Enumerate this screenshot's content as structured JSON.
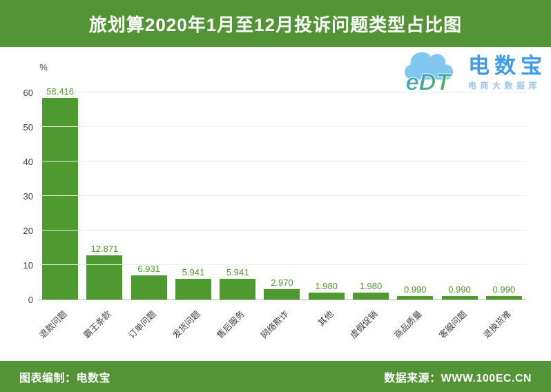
{
  "header": {
    "title": "旅划算2020年1月至12月投诉问题类型占比图",
    "background_color": "#529436"
  },
  "logo": {
    "cloud_text": "eDT",
    "brand": "电数宝",
    "sub": "电商大数据库",
    "brand_color": "#3f9be4",
    "sub_color": "#9cc6ec",
    "cloud_color": "#82c7f0"
  },
  "chart_data": {
    "type": "bar",
    "title": "旅划算2020年1月至12月投诉问题类型占比图",
    "unit_label": "%",
    "categories": [
      "退款问题",
      "霸王条款",
      "订单问题",
      "发货问题",
      "售后服务",
      "网络欺诈",
      "其他",
      "虚假促销",
      "商品质量",
      "客服问题",
      "退换货难"
    ],
    "values": [
      58.416,
      12.871,
      6.931,
      5.941,
      5.941,
      2.97,
      1.98,
      1.98,
      0.99,
      0.99,
      0.99
    ],
    "value_labels": [
      "58.416",
      "12.871",
      "6.931",
      "5.941",
      "5.941",
      "2.970",
      "1.980",
      "1.980",
      "0.990",
      "0.990",
      "0.990"
    ],
    "xlabel": "",
    "ylabel": "%",
    "ylim": [
      0,
      60
    ],
    "yticks": [
      0,
      10,
      20,
      30,
      40,
      50,
      60
    ],
    "grid": true,
    "legend": "none",
    "bar_color": "#4e9a2e",
    "value_label_color": "#4e9a2e"
  },
  "footer": {
    "left": "图表编制：电数宝",
    "right": "数据来源：WWW.100EC.CN"
  }
}
